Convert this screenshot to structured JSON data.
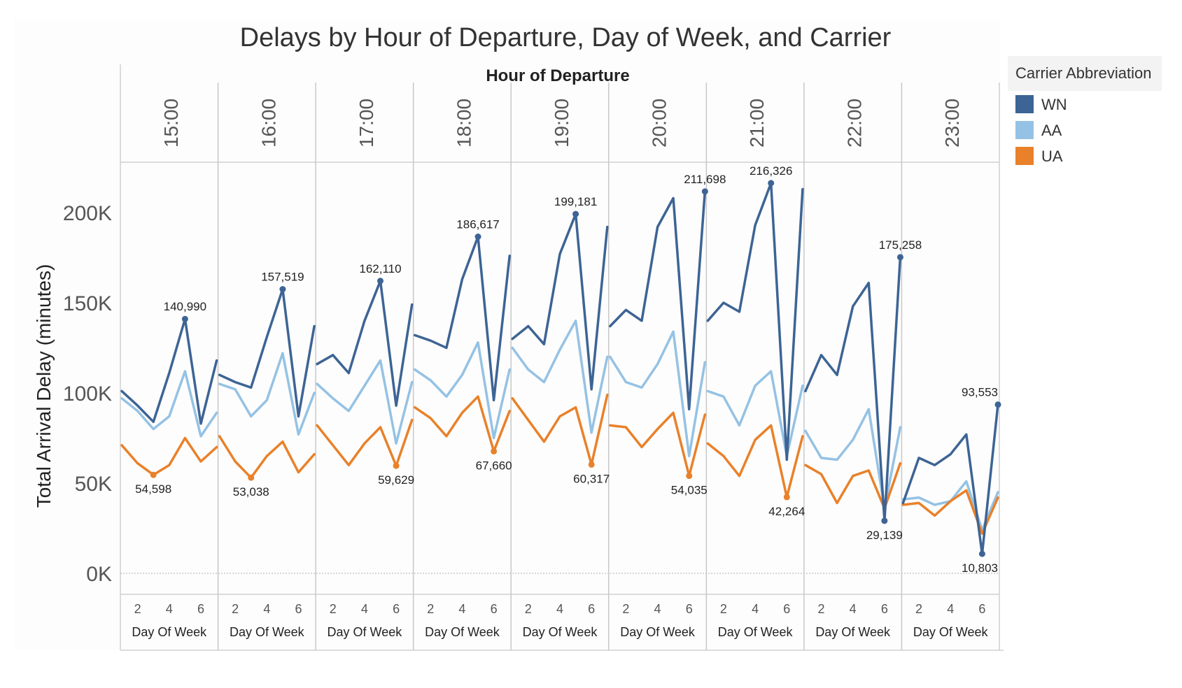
{
  "chart_data": {
    "type": "line",
    "title": "Delays by Hour of Departure, Day of Week, and Carrier",
    "column_header": "Hour of Departure",
    "ylabel": "Total Arrival Delay (minutes)",
    "xlabel": "Day Of Week",
    "ylim": [
      0,
      225000
    ],
    "y_ticks": [
      0,
      50000,
      100000,
      150000,
      200000
    ],
    "y_tick_labels": [
      "0K",
      "50K",
      "100K",
      "150K",
      "200K"
    ],
    "x": [
      1,
      2,
      3,
      4,
      5,
      6,
      7
    ],
    "x_ticks": [
      2,
      4,
      6
    ],
    "x_tick_labels": [
      "2",
      "4",
      "6"
    ],
    "legend": {
      "title": "Carrier Abbreviation",
      "placement": "right"
    },
    "colors": {
      "WN": "#3d6494",
      "AA": "#95c2e4",
      "UA": "#e9812a"
    },
    "panels": [
      {
        "hour": "15:00",
        "series": [
          {
            "name": "WN",
            "values": [
              101000,
              93000,
              84000,
              111000,
              140990,
              83000,
              118000
            ],
            "label": "140,990",
            "label_index": 4
          },
          {
            "name": "AA",
            "values": [
              97000,
              90000,
              80000,
              87000,
              112000,
              76000,
              89000
            ]
          },
          {
            "name": "UA",
            "values": [
              71000,
              61000,
              54598,
              60000,
              75000,
              62000,
              70000
            ],
            "label": "54,598",
            "label_index": 2
          }
        ]
      },
      {
        "hour": "16:00",
        "series": [
          {
            "name": "WN",
            "values": [
              110000,
              106000,
              103000,
              131000,
              157519,
              87000,
              137000
            ],
            "label": "157,519",
            "label_index": 4
          },
          {
            "name": "AA",
            "values": [
              105000,
              102000,
              87000,
              96000,
              122000,
              77000,
              100000
            ]
          },
          {
            "name": "UA",
            "values": [
              76000,
              62000,
              53038,
              65000,
              73000,
              56000,
              66000
            ],
            "label": "53,038",
            "label_index": 2
          }
        ]
      },
      {
        "hour": "17:00",
        "series": [
          {
            "name": "WN",
            "values": [
              116000,
              121000,
              111000,
              140000,
              162110,
              93000,
              149000
            ],
            "label": "162,110",
            "label_index": 4
          },
          {
            "name": "AA",
            "values": [
              105000,
              97000,
              90000,
              104000,
              118000,
              72000,
              106000
            ]
          },
          {
            "name": "UA",
            "values": [
              82000,
              71000,
              60000,
              72000,
              81000,
              59629,
              85000
            ],
            "label": "59,629",
            "label_index": 5
          }
        ]
      },
      {
        "hour": "18:00",
        "series": [
          {
            "name": "WN",
            "values": [
              132000,
              129000,
              125000,
              163000,
              186617,
              96000,
              176000
            ],
            "label": "186,617",
            "label_index": 4
          },
          {
            "name": "AA",
            "values": [
              113000,
              107000,
              98000,
              110000,
              128000,
              75000,
              113000
            ]
          },
          {
            "name": "UA",
            "values": [
              92000,
              86000,
              76000,
              89000,
              98000,
              67660,
              90000
            ],
            "label": "67,660",
            "label_index": 5
          }
        ]
      },
      {
        "hour": "19:00",
        "series": [
          {
            "name": "WN",
            "values": [
              130000,
              137000,
              127000,
              177000,
              199181,
              102000,
              192000
            ],
            "label": "199,181",
            "label_index": 4
          },
          {
            "name": "AA",
            "values": [
              125000,
              113000,
              106000,
              124000,
              140000,
              78000,
              120000
            ]
          },
          {
            "name": "UA",
            "values": [
              97000,
              85000,
              73000,
              87000,
              92000,
              60317,
              99000
            ],
            "label": "60,317",
            "label_index": 5
          }
        ]
      },
      {
        "hour": "20:00",
        "series": [
          {
            "name": "WN",
            "values": [
              137000,
              146000,
              140000,
              192000,
              208000,
              91000,
              211698
            ],
            "label": "211,698",
            "label_index": 6
          },
          {
            "name": "AA",
            "values": [
              120000,
              106000,
              103000,
              116000,
              134000,
              65000,
              117000
            ]
          },
          {
            "name": "UA",
            "values": [
              82000,
              81000,
              70000,
              80000,
              89000,
              54035,
              88000
            ],
            "label": "54,035",
            "label_index": 5
          }
        ]
      },
      {
        "hour": "21:00",
        "series": [
          {
            "name": "WN",
            "values": [
              140000,
              150000,
              145000,
              193000,
              216326,
              63000,
              213000
            ],
            "label": "216,326",
            "label_index": 4
          },
          {
            "name": "AA",
            "values": [
              101000,
              98000,
              82000,
              104000,
              112000,
              65000,
              104000
            ]
          },
          {
            "name": "UA",
            "values": [
              72000,
              65000,
              54000,
              74000,
              82000,
              42264,
              76000
            ],
            "label": "42,264",
            "label_index": 5
          }
        ]
      },
      {
        "hour": "22:00",
        "series": [
          {
            "name": "WN",
            "values": [
              101000,
              121000,
              110000,
              148000,
              161000,
              29139,
              175258
            ],
            "label": "175,258",
            "label_index": 6,
            "label2": "29,139",
            "label2_index": 5
          },
          {
            "name": "AA",
            "values": [
              79000,
              64000,
              63000,
              74000,
              91000,
              36000,
              81000
            ]
          },
          {
            "name": "UA",
            "values": [
              60000,
              55000,
              39000,
              54000,
              57000,
              36000,
              61000
            ]
          }
        ]
      },
      {
        "hour": "23:00",
        "series": [
          {
            "name": "WN",
            "values": [
              39000,
              64000,
              60000,
              66000,
              77000,
              10803,
              93553
            ],
            "label": "93,553",
            "label_index": 6,
            "label2": "10,803",
            "label2_index": 5
          },
          {
            "name": "AA",
            "values": [
              41000,
              42000,
              38000,
              40000,
              51000,
              24000,
              45000
            ]
          },
          {
            "name": "UA",
            "values": [
              38000,
              39000,
              32000,
              40000,
              46000,
              22000,
              42000
            ]
          }
        ]
      }
    ]
  }
}
